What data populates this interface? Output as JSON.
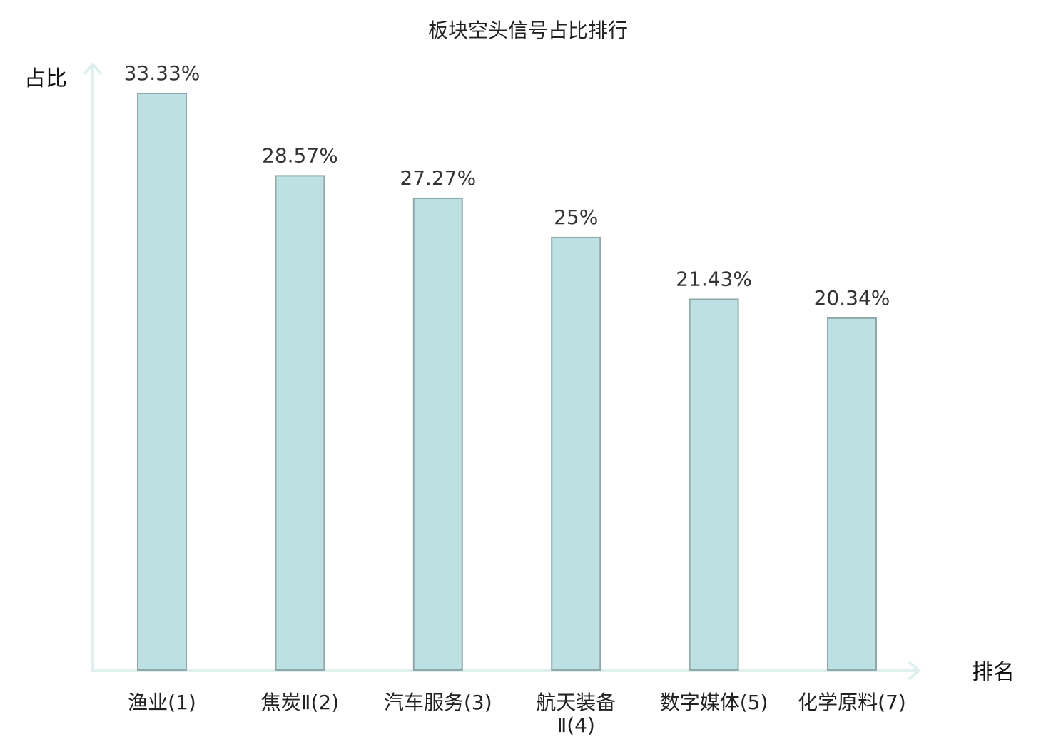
{
  "chart_data": {
    "type": "bar",
    "title": "板块空头信号占比排行",
    "ylabel": "占比",
    "xlabel": "排名",
    "categories": [
      [
        "渔业(1)"
      ],
      [
        "焦炭Ⅱ(2)"
      ],
      [
        "汽车服务(3)"
      ],
      [
        "航天装备",
        "Ⅱ(4)"
      ],
      [
        "数字媒体(5)"
      ],
      [
        "化学原料(7)"
      ]
    ],
    "values": [
      33.33,
      28.57,
      27.27,
      25,
      21.43,
      20.34
    ],
    "value_labels": [
      "33.33%",
      "28.57%",
      "27.27%",
      "25%",
      "21.43%",
      "20.34%"
    ],
    "highlight_index": 5,
    "ylim": [
      0,
      33.33
    ],
    "grid": false,
    "legend": "none",
    "colors": {
      "bar_fill": "#bde0e2",
      "bar_stroke": "#8fa9ab",
      "axis": "#dff0ee",
      "highlight_text": "#dd1111",
      "text": "#222222",
      "value_text": "#333333"
    }
  }
}
